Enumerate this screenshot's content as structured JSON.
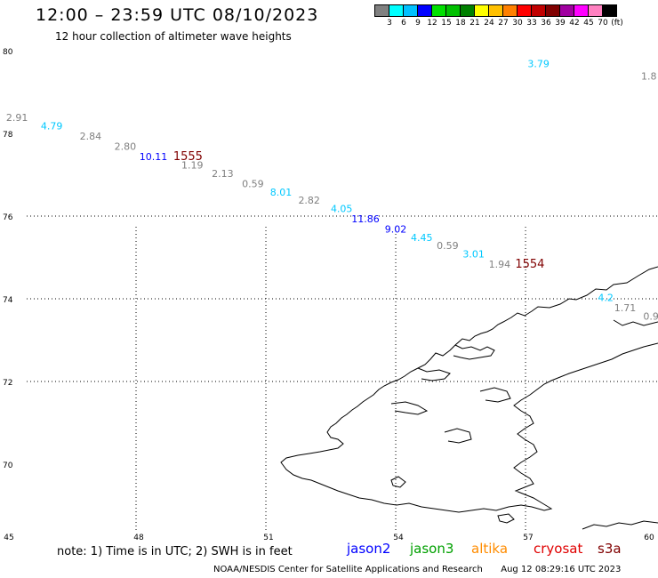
{
  "header": {
    "title": "12:00 – 23:59 UTC 08/10/2023",
    "subtitle": "12 hour collection of altimeter wave heights"
  },
  "colorbar": {
    "colors": [
      "#808080",
      "#00ffff",
      "#00c0ff",
      "#0000ff",
      "#00e000",
      "#00c000",
      "#008000",
      "#ffff00",
      "#ffc000",
      "#ff8000",
      "#ff0000",
      "#c00000",
      "#800000",
      "#a000a0",
      "#ff00ff",
      "#ff80c0",
      "#000000"
    ],
    "labels": [
      "3",
      "6",
      "9",
      "12",
      "15",
      "18",
      "21",
      "24",
      "27",
      "30",
      "33",
      "36",
      "39",
      "42",
      "45",
      "70",
      "(ft)"
    ]
  },
  "map": {
    "lat_labels": [
      "80",
      "78",
      "76",
      "74",
      "72",
      "70"
    ],
    "lon_labels": [
      "45",
      "48",
      "51",
      "54",
      "57",
      "60"
    ],
    "observations": [
      {
        "value": "3.79",
        "lon": 57.3,
        "lat": 79.6,
        "color": "#00c8ff"
      },
      {
        "value": "1.8",
        "lon": 59.85,
        "lat": 79.3,
        "color": "#808080"
      },
      {
        "value": "2.91",
        "lon": 45.25,
        "lat": 78.3,
        "color": "#808080"
      },
      {
        "value": "4.79",
        "lon": 46.05,
        "lat": 78.1,
        "color": "#00c8ff"
      },
      {
        "value": "2.84",
        "lon": 46.95,
        "lat": 77.85,
        "color": "#808080"
      },
      {
        "value": "2.80",
        "lon": 47.75,
        "lat": 77.6,
        "color": "#808080"
      },
      {
        "value": "10.11",
        "lon": 48.4,
        "lat": 77.35,
        "color": "#0000ff"
      },
      {
        "value": "1.19",
        "lon": 49.3,
        "lat": 77.15,
        "color": "#808080"
      },
      {
        "value": "2.13",
        "lon": 50.0,
        "lat": 76.95,
        "color": "#808080"
      },
      {
        "value": "0.59",
        "lon": 50.7,
        "lat": 76.7,
        "color": "#808080"
      },
      {
        "value": "8.01",
        "lon": 51.35,
        "lat": 76.5,
        "color": "#00c8ff"
      },
      {
        "value": "2.82",
        "lon": 52.0,
        "lat": 76.3,
        "color": "#808080"
      },
      {
        "value": "4.05",
        "lon": 52.75,
        "lat": 76.1,
        "color": "#00c8ff"
      },
      {
        "value": "11.86",
        "lon": 53.3,
        "lat": 75.85,
        "color": "#0000ff"
      },
      {
        "value": "9.02",
        "lon": 54.0,
        "lat": 75.6,
        "color": "#0000ff"
      },
      {
        "value": "4.45",
        "lon": 54.6,
        "lat": 75.4,
        "color": "#00c8ff"
      },
      {
        "value": "0.59",
        "lon": 55.2,
        "lat": 75.2,
        "color": "#808080"
      },
      {
        "value": "3.01",
        "lon": 55.8,
        "lat": 75.0,
        "color": "#00c8ff"
      },
      {
        "value": "1.94",
        "lon": 56.4,
        "lat": 74.75,
        "color": "#808080"
      },
      {
        "value": "4.2",
        "lon": 58.85,
        "lat": 73.95,
        "color": "#00c8ff"
      },
      {
        "value": "1.71",
        "lon": 59.3,
        "lat": 73.7,
        "color": "#808080"
      },
      {
        "value": "0.9",
        "lon": 59.9,
        "lat": 73.5,
        "color": "#808080"
      }
    ],
    "track_ids": [
      {
        "value": "1555",
        "lon": 49.2,
        "lat": 77.35,
        "color": "#800000"
      },
      {
        "value": "1554",
        "lon": 57.1,
        "lat": 74.75,
        "color": "#800000"
      }
    ]
  },
  "footer": {
    "note": "note: 1) Time is in UTC; 2) SWH is in feet",
    "legend": [
      {
        "name": "jason2",
        "color": "#0000ff"
      },
      {
        "name": "jason3",
        "color": "#00a000"
      },
      {
        "name": "altika",
        "color": "#ff8c00"
      },
      {
        "name": "cryosat",
        "color": "#e00000"
      },
      {
        "name": "s3a",
        "color": "#800000"
      }
    ],
    "credit": "NOAA/NESDIS Center for Satellite Applications and Research",
    "timestamp": "Aug 12 08:29:16 UTC 2023"
  }
}
